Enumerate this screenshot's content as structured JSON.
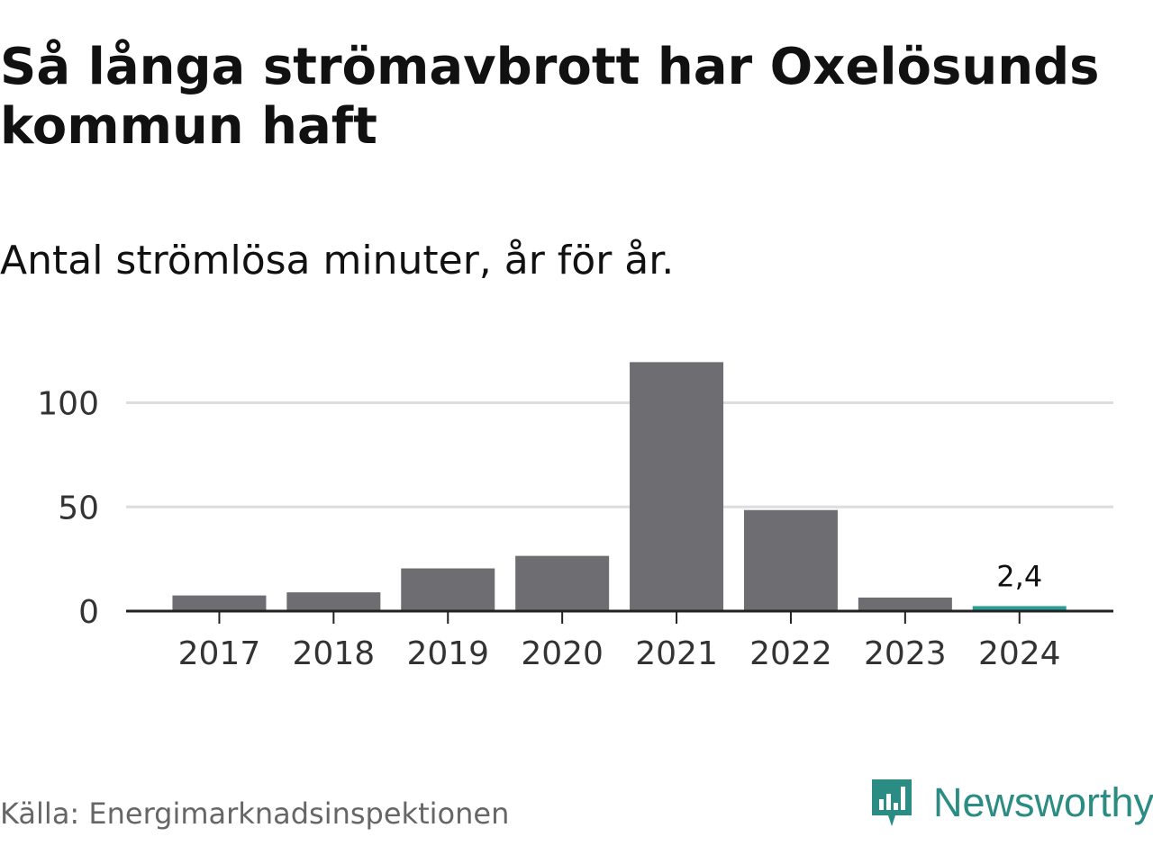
{
  "title": "Så långa strömavbrott har Oxelösunds kommun haft",
  "subtitle": "Antal strömlösa minuter, år för år.",
  "source": "Källa: Energimarknadsinspektionen",
  "brand": {
    "name": "Newsworthy",
    "icon": "newsworthy-logo-icon",
    "color": "#2a8c82"
  },
  "colors": {
    "bar": "#6e6d72",
    "highlight": "#2a9d95",
    "grid": "#dddddd",
    "axis": "#222222"
  },
  "chart_data": {
    "type": "bar",
    "categories": [
      "2017",
      "2018",
      "2019",
      "2020",
      "2021",
      "2022",
      "2023",
      "2024"
    ],
    "values": [
      7.5,
      9,
      20.5,
      26.5,
      119.5,
      48.5,
      6.5,
      2.4
    ],
    "ylim": [
      0,
      120
    ],
    "yticks": [
      0,
      50,
      100
    ],
    "ytick_labels": [
      "0",
      "50",
      "100"
    ],
    "highlight_index": 7,
    "data_labels": [
      {
        "index": 7,
        "text": "2,4"
      }
    ],
    "grid": true
  }
}
